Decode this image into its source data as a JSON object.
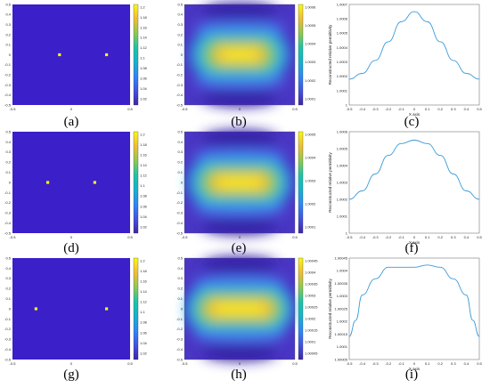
{
  "colors": {
    "background": "#3b1fc9",
    "colormap": [
      "#3e26a8",
      "#4353e3",
      "#2e87f7",
      "#17b2cc",
      "#1cc4a8",
      "#8fc94d",
      "#f1bc36",
      "#f9f90f"
    ],
    "line": "#3a9ad9",
    "dot": "#f9f90f"
  },
  "panels": [
    {
      "id": "a",
      "label": "(a)",
      "kind": "map",
      "x_ticks": [
        "-0.5",
        "0",
        "0.5"
      ],
      "y_ticks": [
        "0.5",
        "0.4",
        "0.3",
        "0.2",
        "0.1",
        "0",
        "-0.1",
        "-0.2",
        "-0.3",
        "-0.4",
        "-0.5"
      ],
      "points": [
        {
          "x": -0.1,
          "y": 0
        },
        {
          "x": 0.3,
          "y": 0
        }
      ],
      "colorbar_ticks": [
        "1.2",
        "1.18",
        "1.16",
        "1.14",
        "1.12",
        "1.1",
        "1.08",
        "1.06",
        "1.04",
        "1.02"
      ]
    },
    {
      "id": "b",
      "label": "(b)",
      "kind": "field",
      "x_ticks": [
        "-0.5",
        "0",
        "0.5"
      ],
      "y_ticks": [
        "0.5",
        "0.4",
        "0.3",
        "0.2",
        "0.1",
        "0",
        "-0.1",
        "-0.2",
        "-0.3",
        "-0.4",
        "-0.5"
      ],
      "plateau": 0.18,
      "colorbar_ticks": [
        "1.0006",
        "1.0005",
        "1.0004",
        "1.0003",
        "1.0002",
        "1.0001"
      ]
    },
    {
      "id": "c",
      "label": "(c)",
      "kind": "profile",
      "ylabel": "Reconstructed relative permittivity",
      "xlabel": "X axis",
      "x_ticks": [
        "-0.5",
        "-0.4",
        "-0.3",
        "-0.2",
        "-0.1",
        "0",
        "0.1",
        "0.2",
        "0.3",
        "0.4",
        "0.5"
      ],
      "y_ticks": [
        "1.0007",
        "1.0006",
        "1.0005",
        "1.0004",
        "1.0003",
        "1.0002",
        "1.0001",
        "1"
      ],
      "ylim": [
        1.0,
        1.0007
      ],
      "x": [
        -0.5,
        -0.4,
        -0.3,
        -0.2,
        -0.1,
        0,
        0.1,
        0.2,
        0.3,
        0.4,
        0.5
      ],
      "y": [
        1.00018,
        1.00022,
        1.00031,
        1.00044,
        1.00058,
        1.00065,
        1.00058,
        1.00044,
        1.00031,
        1.00022,
        1.00018
      ]
    },
    {
      "id": "d",
      "label": "(d)",
      "kind": "map",
      "x_ticks": [
        "-0.5",
        "0",
        "0.5"
      ],
      "y_ticks": [
        "0.5",
        "0.4",
        "0.3",
        "0.2",
        "0.1",
        "0",
        "-0.1",
        "-0.2",
        "-0.3",
        "-0.4",
        "-0.5"
      ],
      "points": [
        {
          "x": -0.2,
          "y": 0
        },
        {
          "x": 0.2,
          "y": 0
        }
      ],
      "colorbar_ticks": [
        "1.2",
        "1.18",
        "1.16",
        "1.14",
        "1.12",
        "1.1",
        "1.08",
        "1.06",
        "1.04",
        "1.02"
      ]
    },
    {
      "id": "e",
      "label": "(e)",
      "kind": "field",
      "x_ticks": [
        "-0.5",
        "0",
        "0.5"
      ],
      "y_ticks": [
        "0.5",
        "0.4",
        "0.3",
        "0.2",
        "0.1",
        "0",
        "-0.1",
        "-0.2",
        "-0.3",
        "-0.4",
        "-0.5"
      ],
      "plateau": 0.24,
      "colorbar_ticks": [
        "1.0005",
        "1.0004",
        "1.0003",
        "1.0002",
        "1.0001"
      ]
    },
    {
      "id": "f",
      "label": "(f)",
      "kind": "profile",
      "ylabel": "Reconstructed relative permittivity",
      "xlabel": "X axis",
      "x_ticks": [
        "-0.5",
        "-0.4",
        "-0.3",
        "-0.2",
        "-0.1",
        "0",
        "0.1",
        "0.2",
        "0.3",
        "0.4",
        "0.5"
      ],
      "y_ticks": [
        "1.0006",
        "1.0005",
        "1.0004",
        "1.0003",
        "1.0002",
        "1.0001",
        "1"
      ],
      "ylim": [
        1.0,
        1.0006
      ],
      "x": [
        -0.5,
        -0.4,
        -0.3,
        -0.2,
        -0.1,
        0,
        0.1,
        0.2,
        0.3,
        0.4,
        0.5
      ],
      "y": [
        1.0002,
        1.00025,
        1.00035,
        1.00046,
        1.00053,
        1.00055,
        1.00053,
        1.00046,
        1.00035,
        1.00025,
        1.0002
      ]
    },
    {
      "id": "g",
      "label": "(g)",
      "kind": "map",
      "x_ticks": [
        "-0.5",
        "0",
        "0.5"
      ],
      "y_ticks": [
        "0.5",
        "0.4",
        "0.3",
        "0.2",
        "0.1",
        "0",
        "-0.1",
        "-0.2",
        "-0.3",
        "-0.4",
        "-0.5"
      ],
      "points": [
        {
          "x": -0.3,
          "y": 0
        },
        {
          "x": 0.3,
          "y": 0
        }
      ],
      "colorbar_ticks": [
        "1.2",
        "1.18",
        "1.16",
        "1.14",
        "1.12",
        "1.1",
        "1.08",
        "1.06",
        "1.04",
        "1.02"
      ]
    },
    {
      "id": "h",
      "label": "(h)",
      "kind": "field",
      "x_ticks": [
        "-0.5",
        "0",
        "0.5"
      ],
      "y_ticks": [
        "0.5",
        "0.4",
        "0.3",
        "0.2",
        "0.1",
        "0",
        "-0.1",
        "-0.2",
        "-0.3",
        "-0.4",
        "-0.5"
      ],
      "plateau": 0.3,
      "colorbar_ticks": [
        "1.00045",
        "1.0004",
        "1.00035",
        "1.0003",
        "1.00025",
        "1.0002",
        "1.00015",
        "1.0001",
        "1.00005"
      ]
    },
    {
      "id": "i",
      "label": "(i)",
      "kind": "profile",
      "ylabel": "Reconstructed relative permittivity",
      "xlabel": "X axis",
      "x_ticks": [
        "-0.5",
        "-0.4",
        "-0.3",
        "-0.2",
        "-0.1",
        "0",
        "0.1",
        "0.2",
        "0.3",
        "0.4",
        "0.5"
      ],
      "y_ticks": [
        "1.00045",
        "1.0004",
        "1.00035",
        "1.0003",
        "1.00025",
        "1.0002",
        "1.00015",
        "1.0001",
        "1.00005"
      ],
      "ylim": [
        1.00005,
        1.00049
      ],
      "x": [
        -0.5,
        -0.45,
        -0.4,
        -0.3,
        -0.2,
        -0.1,
        0,
        0.1,
        0.2,
        0.3,
        0.4,
        0.45,
        0.5
      ],
      "y": [
        1.00015,
        1.00022,
        1.00033,
        1.0004,
        1.00045,
        1.00045,
        1.00045,
        1.00046,
        1.00045,
        1.0004,
        1.00033,
        1.00022,
        1.00015
      ]
    }
  ]
}
